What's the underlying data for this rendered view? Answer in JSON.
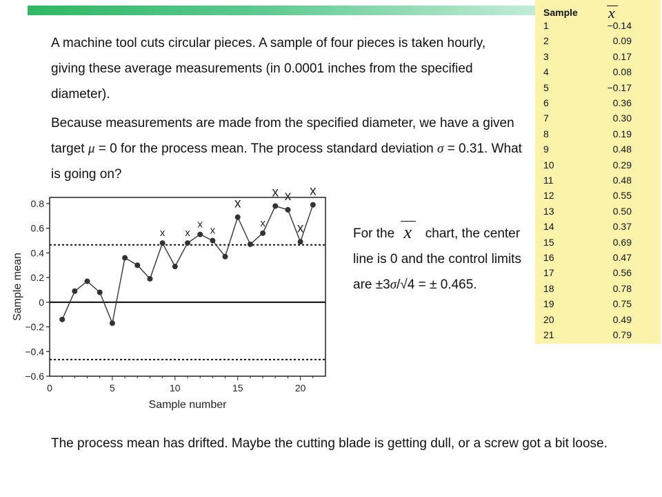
{
  "table": {
    "header_label": "Sample",
    "header_symbol": "x",
    "rows": [
      {
        "sample": "1",
        "mean": "−0.14"
      },
      {
        "sample": "2",
        "mean": "0.09"
      },
      {
        "sample": "3",
        "mean": "0.17"
      },
      {
        "sample": "4",
        "mean": "0.08"
      },
      {
        "sample": "5",
        "mean": "−0.17"
      },
      {
        "sample": "6",
        "mean": "0.36"
      },
      {
        "sample": "7",
        "mean": "0.30"
      },
      {
        "sample": "8",
        "mean": "0.19"
      },
      {
        "sample": "9",
        "mean": "0.48"
      },
      {
        "sample": "10",
        "mean": "0.29"
      },
      {
        "sample": "11",
        "mean": "0.48"
      },
      {
        "sample": "12",
        "mean": "0.55"
      },
      {
        "sample": "13",
        "mean": "0.50"
      },
      {
        "sample": "14",
        "mean": "0.37"
      },
      {
        "sample": "15",
        "mean": "0.69"
      },
      {
        "sample": "16",
        "mean": "0.47"
      },
      {
        "sample": "17",
        "mean": "0.56"
      },
      {
        "sample": "18",
        "mean": "0.78"
      },
      {
        "sample": "19",
        "mean": "0.75"
      },
      {
        "sample": "20",
        "mean": "0.49"
      },
      {
        "sample": "21",
        "mean": "0.79"
      }
    ]
  },
  "text": {
    "p1": "A machine tool cuts circular pieces. A sample of four pieces is taken hourly, giving these average measurements (in 0.0001 inches from the specified diameter).",
    "p2_a": "Because measurements are made from the specified diameter, we have a given target ",
    "p2_mu": "μ",
    "p2_b": " = 0 for the process mean. The process standard deviation ",
    "p2_sigma": "σ",
    "p2_c": " = 0.31. What is going on?",
    "note_a": "For the ",
    "note_symbol": "x",
    "note_b": " chart, the center line is 0 and the control limits are ±3",
    "note_sigma": "σ",
    "note_c": "/√4 = ± 0.465.",
    "p3": "The process mean has drifted. Maybe the cutting blade is getting dull, or a screw got a bit loose."
  },
  "chart_data": {
    "type": "line",
    "xlabel": "Sample number",
    "ylabel": "Sample mean",
    "xlim": [
      0,
      22
    ],
    "ylim": [
      -0.6,
      0.85
    ],
    "xticks": [
      0,
      5,
      10,
      15,
      20
    ],
    "yticks": [
      -0.6,
      -0.4,
      -0.2,
      0,
      0.2,
      0.4,
      0.6,
      0.8
    ],
    "ytick_labels": [
      "−0.6",
      "−0.4",
      "−0.2",
      "0",
      "0.2",
      "0.4",
      "0.6",
      "0.8"
    ],
    "center_line": 0,
    "control_limits": [
      -0.465,
      0.465
    ],
    "x": [
      1,
      2,
      3,
      4,
      5,
      6,
      7,
      8,
      9,
      10,
      11,
      12,
      13,
      14,
      15,
      16,
      17,
      18,
      19,
      20,
      21
    ],
    "values": [
      -0.14,
      0.09,
      0.17,
      0.08,
      -0.17,
      0.36,
      0.3,
      0.19,
      0.48,
      0.29,
      0.48,
      0.55,
      0.5,
      0.37,
      0.69,
      0.47,
      0.56,
      0.78,
      0.75,
      0.49,
      0.79
    ],
    "printed_marks": {
      "label": "x",
      "samples": [
        9,
        11,
        12,
        13,
        15,
        17,
        18,
        19,
        20,
        21
      ]
    }
  },
  "colors": {
    "table_bg": "#fbf3a9",
    "bar_start": "#2fb865",
    "bar_end": "#c3ecd8"
  }
}
